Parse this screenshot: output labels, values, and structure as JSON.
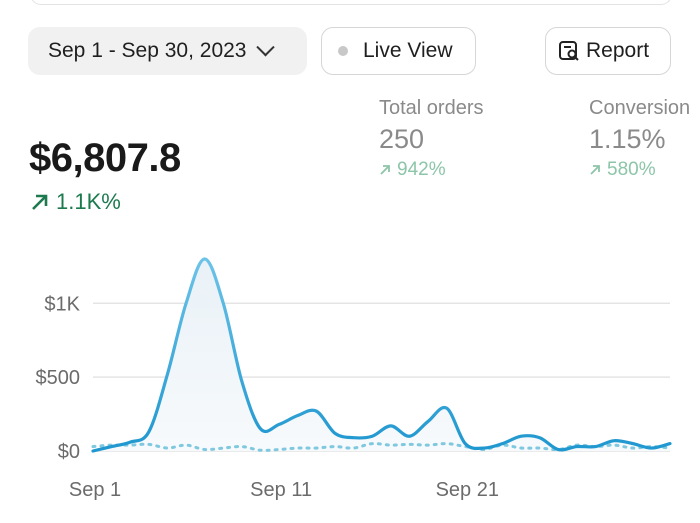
{
  "toolbar": {
    "date_range": "Sep 1 - Sep 30, 2023",
    "live_view_label": "Live View",
    "report_label": "Report"
  },
  "summary": {
    "total_sales_value": "$6,807.8",
    "total_sales_delta": "1.1K%"
  },
  "metrics": [
    {
      "label": "Total orders",
      "value": "250",
      "delta": "942%"
    },
    {
      "label": "Conversion",
      "value": "1.15%",
      "delta": "580%"
    }
  ],
  "colors": {
    "line": "#2b9fd6",
    "line_light": "#6cc3e8",
    "comparison": "#7fc8df",
    "positive": "#1d7a4f",
    "positive_muted": "#8cc5a8"
  },
  "chart_data": {
    "type": "area",
    "y_ticks": [
      "$1K",
      "$500",
      "$0"
    ],
    "x_ticks": [
      "Sep 1",
      "Sep 11",
      "Sep 21"
    ],
    "ylim": [
      0,
      1300
    ],
    "grid": true,
    "series": [
      {
        "values": [
          0,
          30,
          60,
          130,
          520,
          1000,
          1300,
          1000,
          470,
          150,
          180,
          240,
          270,
          120,
          90,
          100,
          170,
          100,
          200,
          290,
          50,
          20,
          50,
          100,
          90,
          10,
          30,
          30,
          70,
          50,
          20,
          50
        ]
      },
      {
        "values": [
          30,
          40,
          40,
          45,
          20,
          40,
          10,
          20,
          30,
          5,
          10,
          20,
          20,
          30,
          20,
          50,
          40,
          45,
          40,
          50,
          30,
          10,
          40,
          20,
          20,
          10,
          40,
          30,
          40,
          20,
          30,
          20
        ]
      }
    ]
  }
}
